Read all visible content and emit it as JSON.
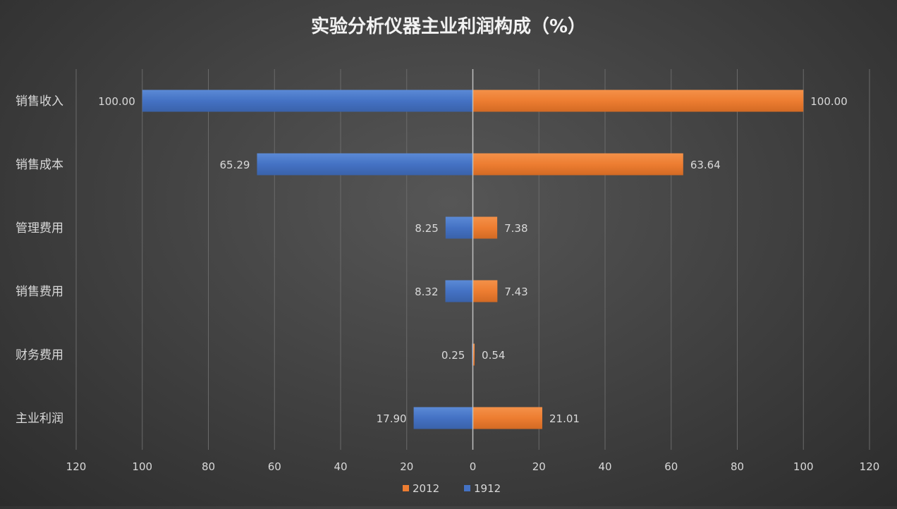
{
  "chart_data": {
    "type": "bar",
    "orientation": "horizontal-diverging",
    "title": "实验分析仪器主业利润构成（%）",
    "categories": [
      "销售收入",
      "销售成本",
      "管理费用",
      "销售费用",
      "财务费用",
      "主业利润"
    ],
    "series": [
      {
        "name": "1912",
        "color": "#4472c4",
        "side": "left",
        "values": [
          100.0,
          65.29,
          8.25,
          8.32,
          0.25,
          17.9
        ]
      },
      {
        "name": "2012",
        "color": "#ed7d31",
        "side": "right",
        "values": [
          100.0,
          63.64,
          7.38,
          7.43,
          0.54,
          21.01
        ]
      }
    ],
    "xlim": [
      -120,
      120
    ],
    "x_ticks": [
      -120,
      -100,
      -80,
      -60,
      -40,
      -20,
      0,
      20,
      40,
      60,
      80,
      100,
      120
    ],
    "x_tick_labels": [
      "120",
      "100",
      "80",
      "60",
      "40",
      "20",
      "0",
      "20",
      "40",
      "60",
      "80",
      "100",
      "120"
    ],
    "data_label_format": "2 decimals",
    "grid": true,
    "legend_position": "bottom",
    "legend_order": [
      "2012",
      "1912"
    ]
  },
  "colors": {
    "text": "#d9d9d9",
    "title": "#f2f2f2",
    "grid": "#6a6a6a",
    "axis": "#bfbfbf"
  }
}
